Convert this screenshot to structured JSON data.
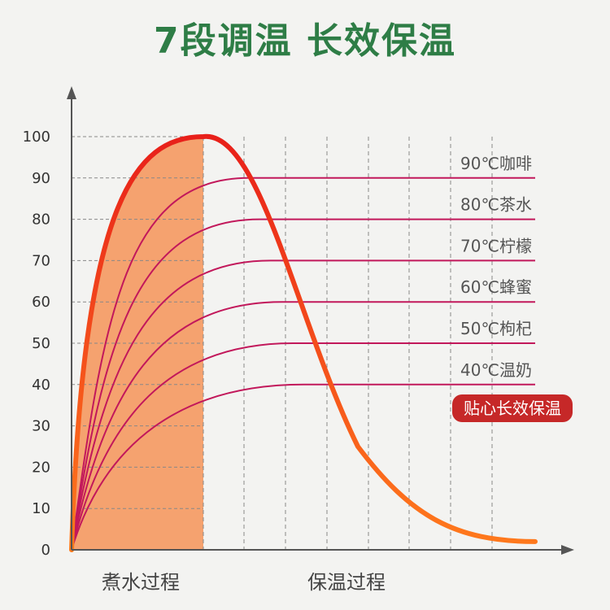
{
  "header": {
    "title": "7段调温  长效保温"
  },
  "colors": {
    "title": "#2e7d46",
    "boil_fill": "#f5a26f",
    "boil_curve_top": "#e8201a",
    "boil_curve_bottom": "#ff7a1c",
    "level_line": "#c2185b",
    "badge": "#c62828",
    "axis": "#555555",
    "grid": "#888888"
  },
  "chart_data": {
    "type": "line",
    "ylim": [
      0,
      100
    ],
    "yticks": [
      "0",
      "10",
      "20",
      "30",
      "40",
      "50",
      "60",
      "70",
      "80",
      "90",
      "100"
    ],
    "x_sections": [
      "煮水过程",
      "保温过程"
    ],
    "series": [
      {
        "name": "90℃咖啡",
        "hold_temp": 90
      },
      {
        "name": "80℃茶水",
        "hold_temp": 80
      },
      {
        "name": "70℃柠檬",
        "hold_temp": 70
      },
      {
        "name": "60℃蜂蜜",
        "hold_temp": 60
      },
      {
        "name": "50℃枸杞",
        "hold_temp": 50
      },
      {
        "name": "40℃温奶",
        "hold_temp": 40
      }
    ],
    "boil_peak": 100,
    "cool_end": 2,
    "badge": "贴心长效保温"
  }
}
